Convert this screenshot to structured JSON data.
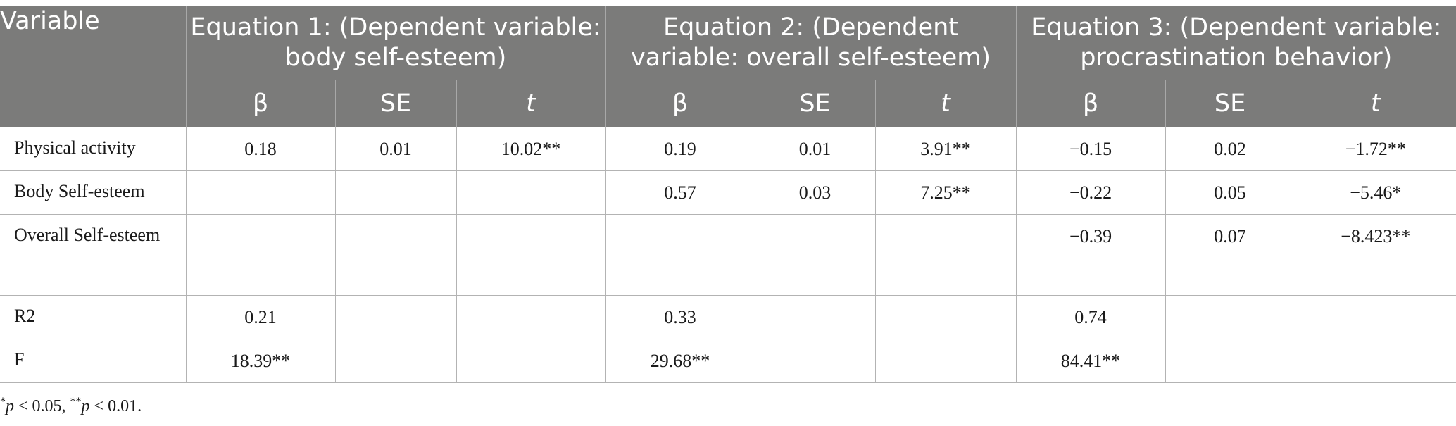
{
  "table": {
    "variable_header": "Variable",
    "equations": [
      "Equation 1: (Dependent variable: body self-esteem)",
      "Equation 2: (Dependent variable: overall self-esteem)",
      "Equation 3: (Dependent variable: procrastination behavior)"
    ],
    "subheaders": [
      "β",
      "SE",
      "t"
    ],
    "rows": [
      {
        "label": "Physical activity",
        "cells": [
          "0.18",
          "0.01",
          "10.02**",
          "0.19",
          "0.01",
          "3.91**",
          "−0.15",
          "0.02",
          "−1.72**"
        ]
      },
      {
        "label": "Body Self-esteem",
        "cells": [
          "",
          "",
          "",
          "0.57",
          "0.03",
          "7.25**",
          "−0.22",
          "0.05",
          "−5.46*"
        ]
      },
      {
        "label": "Overall Self-esteem",
        "cells": [
          "",
          "",
          "",
          "",
          "",
          "",
          "−0.39",
          "0.07",
          "−8.423**"
        ]
      },
      {
        "label": "R2",
        "cells": [
          "0.21",
          "",
          "",
          "0.33",
          "",
          "",
          "0.74",
          "",
          ""
        ]
      },
      {
        "label": "F",
        "cells": [
          "18.39**",
          "",
          "",
          "29.68**",
          "",
          "",
          "84.41**",
          "",
          ""
        ]
      }
    ]
  },
  "footnote": {
    "star1": "*",
    "p1": "p",
    "text1": " < 0.05, ",
    "star2": "**",
    "p2": "p",
    "text2": " < 0.01."
  }
}
